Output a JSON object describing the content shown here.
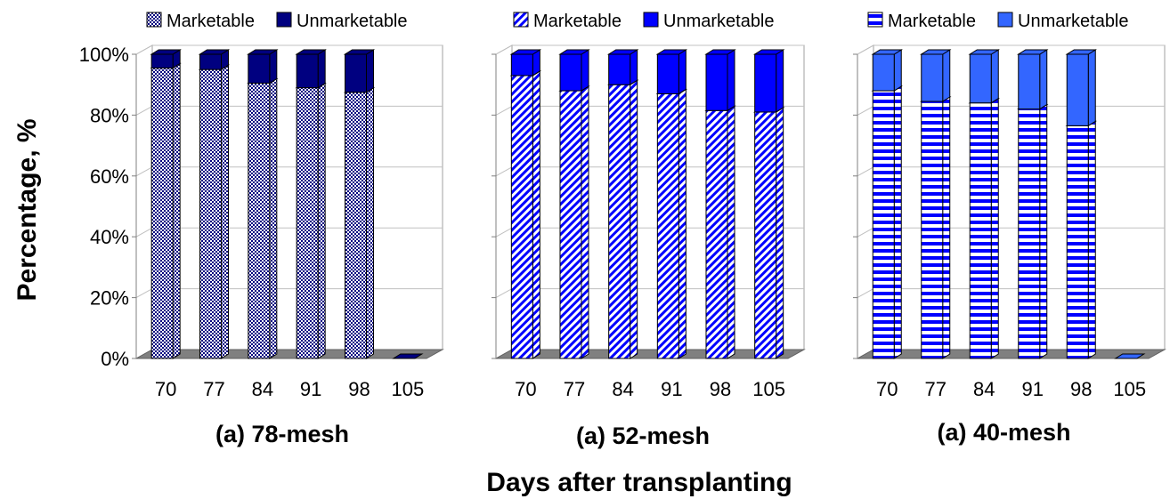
{
  "figure": {
    "ylabel": "Percentage, %",
    "xlabel": "Days after transplanting"
  },
  "colors": {
    "marketable_fill": "#ffffff",
    "marketable_pattern_78": "#000080",
    "marketable_pattern_52": "#0000ff",
    "marketable_pattern_40": "#0000ff",
    "unmarketable_78": "#000080",
    "unmarketable_52": "#0000ff",
    "unmarketable_40": "#3366ff",
    "floor": "#808080",
    "grid": "#c0c0c0"
  },
  "chart_data": [
    {
      "type": "bar",
      "stacked": true,
      "title": "(a) 78-mesh",
      "categories": [
        "70",
        "77",
        "84",
        "91",
        "98",
        "105"
      ],
      "series": [
        {
          "name": "Marketable",
          "values": [
            95.5,
            95.0,
            90.5,
            89.0,
            87.5,
            0
          ]
        },
        {
          "name": "Unmarketable",
          "values": [
            4.5,
            5.0,
            9.5,
            11.0,
            12.5,
            0
          ]
        }
      ],
      "ylim": [
        0,
        100
      ],
      "yticks": [
        "0%",
        "20%",
        "40%",
        "60%",
        "80%",
        "100%"
      ],
      "grid": true,
      "legend": "top",
      "pattern": "dots"
    },
    {
      "type": "bar",
      "stacked": true,
      "title": "(a) 52-mesh",
      "categories": [
        "70",
        "77",
        "84",
        "91",
        "98",
        "105"
      ],
      "series": [
        {
          "name": "Marketable",
          "values": [
            93.0,
            88.0,
            90.0,
            87.0,
            81.5,
            81.0
          ]
        },
        {
          "name": "Unmarketable",
          "values": [
            7.0,
            12.0,
            10.0,
            13.0,
            18.5,
            19.0
          ]
        }
      ],
      "ylim": [
        0,
        100
      ],
      "yticks": [
        "0%",
        "20%",
        "40%",
        "60%",
        "80%",
        "100%"
      ],
      "grid": true,
      "legend": "top",
      "pattern": "diagonal"
    },
    {
      "type": "bar",
      "stacked": true,
      "title": "(a) 40-mesh",
      "categories": [
        "70",
        "77",
        "84",
        "91",
        "98",
        "105"
      ],
      "series": [
        {
          "name": "Marketable",
          "values": [
            88.0,
            84.5,
            84.0,
            82.0,
            76.5,
            0
          ]
        },
        {
          "name": "Unmarketable",
          "values": [
            12.0,
            15.5,
            16.0,
            18.0,
            23.5,
            0
          ]
        }
      ],
      "ylim": [
        0,
        100
      ],
      "yticks": [
        "0%",
        "20%",
        "40%",
        "60%",
        "80%",
        "100%"
      ],
      "grid": true,
      "legend": "top",
      "pattern": "horizontal"
    }
  ]
}
